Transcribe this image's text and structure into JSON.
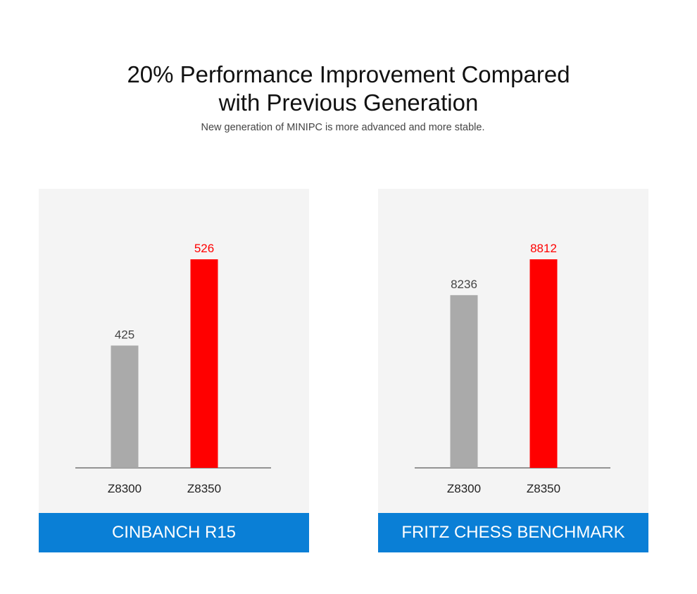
{
  "header": {
    "title_line1": "20% Performance Improvement Compared",
    "title_line2": "with Previous Generation",
    "subtitle": "New generation of MINIPC is more advanced and more stable."
  },
  "colors": {
    "previous": "#aaaaaa",
    "current": "#ff0000",
    "footer": "#0a7fd6",
    "panel_bg": "#f4f4f4"
  },
  "chart_data": [
    {
      "type": "bar",
      "title": "CINBANCH R15",
      "categories": [
        "Z8300",
        "Z8350"
      ],
      "values": [
        425,
        526
      ],
      "labels": [
        "425",
        "526"
      ],
      "bar_colors": [
        "#aaaaaa",
        "#ff0000"
      ],
      "label_colors": [
        "#444444",
        "#ff0000"
      ],
      "ylim": [
        0,
        526
      ]
    },
    {
      "type": "bar",
      "title": "FRITZ CHESS BENCHMARK",
      "categories": [
        "Z8300",
        "Z8350"
      ],
      "values": [
        8236,
        8812
      ],
      "labels": [
        "8236",
        "8812"
      ],
      "bar_colors": [
        "#aaaaaa",
        "#ff0000"
      ],
      "label_colors": [
        "#444444",
        "#ff0000"
      ],
      "ylim": [
        0,
        8812
      ]
    }
  ]
}
